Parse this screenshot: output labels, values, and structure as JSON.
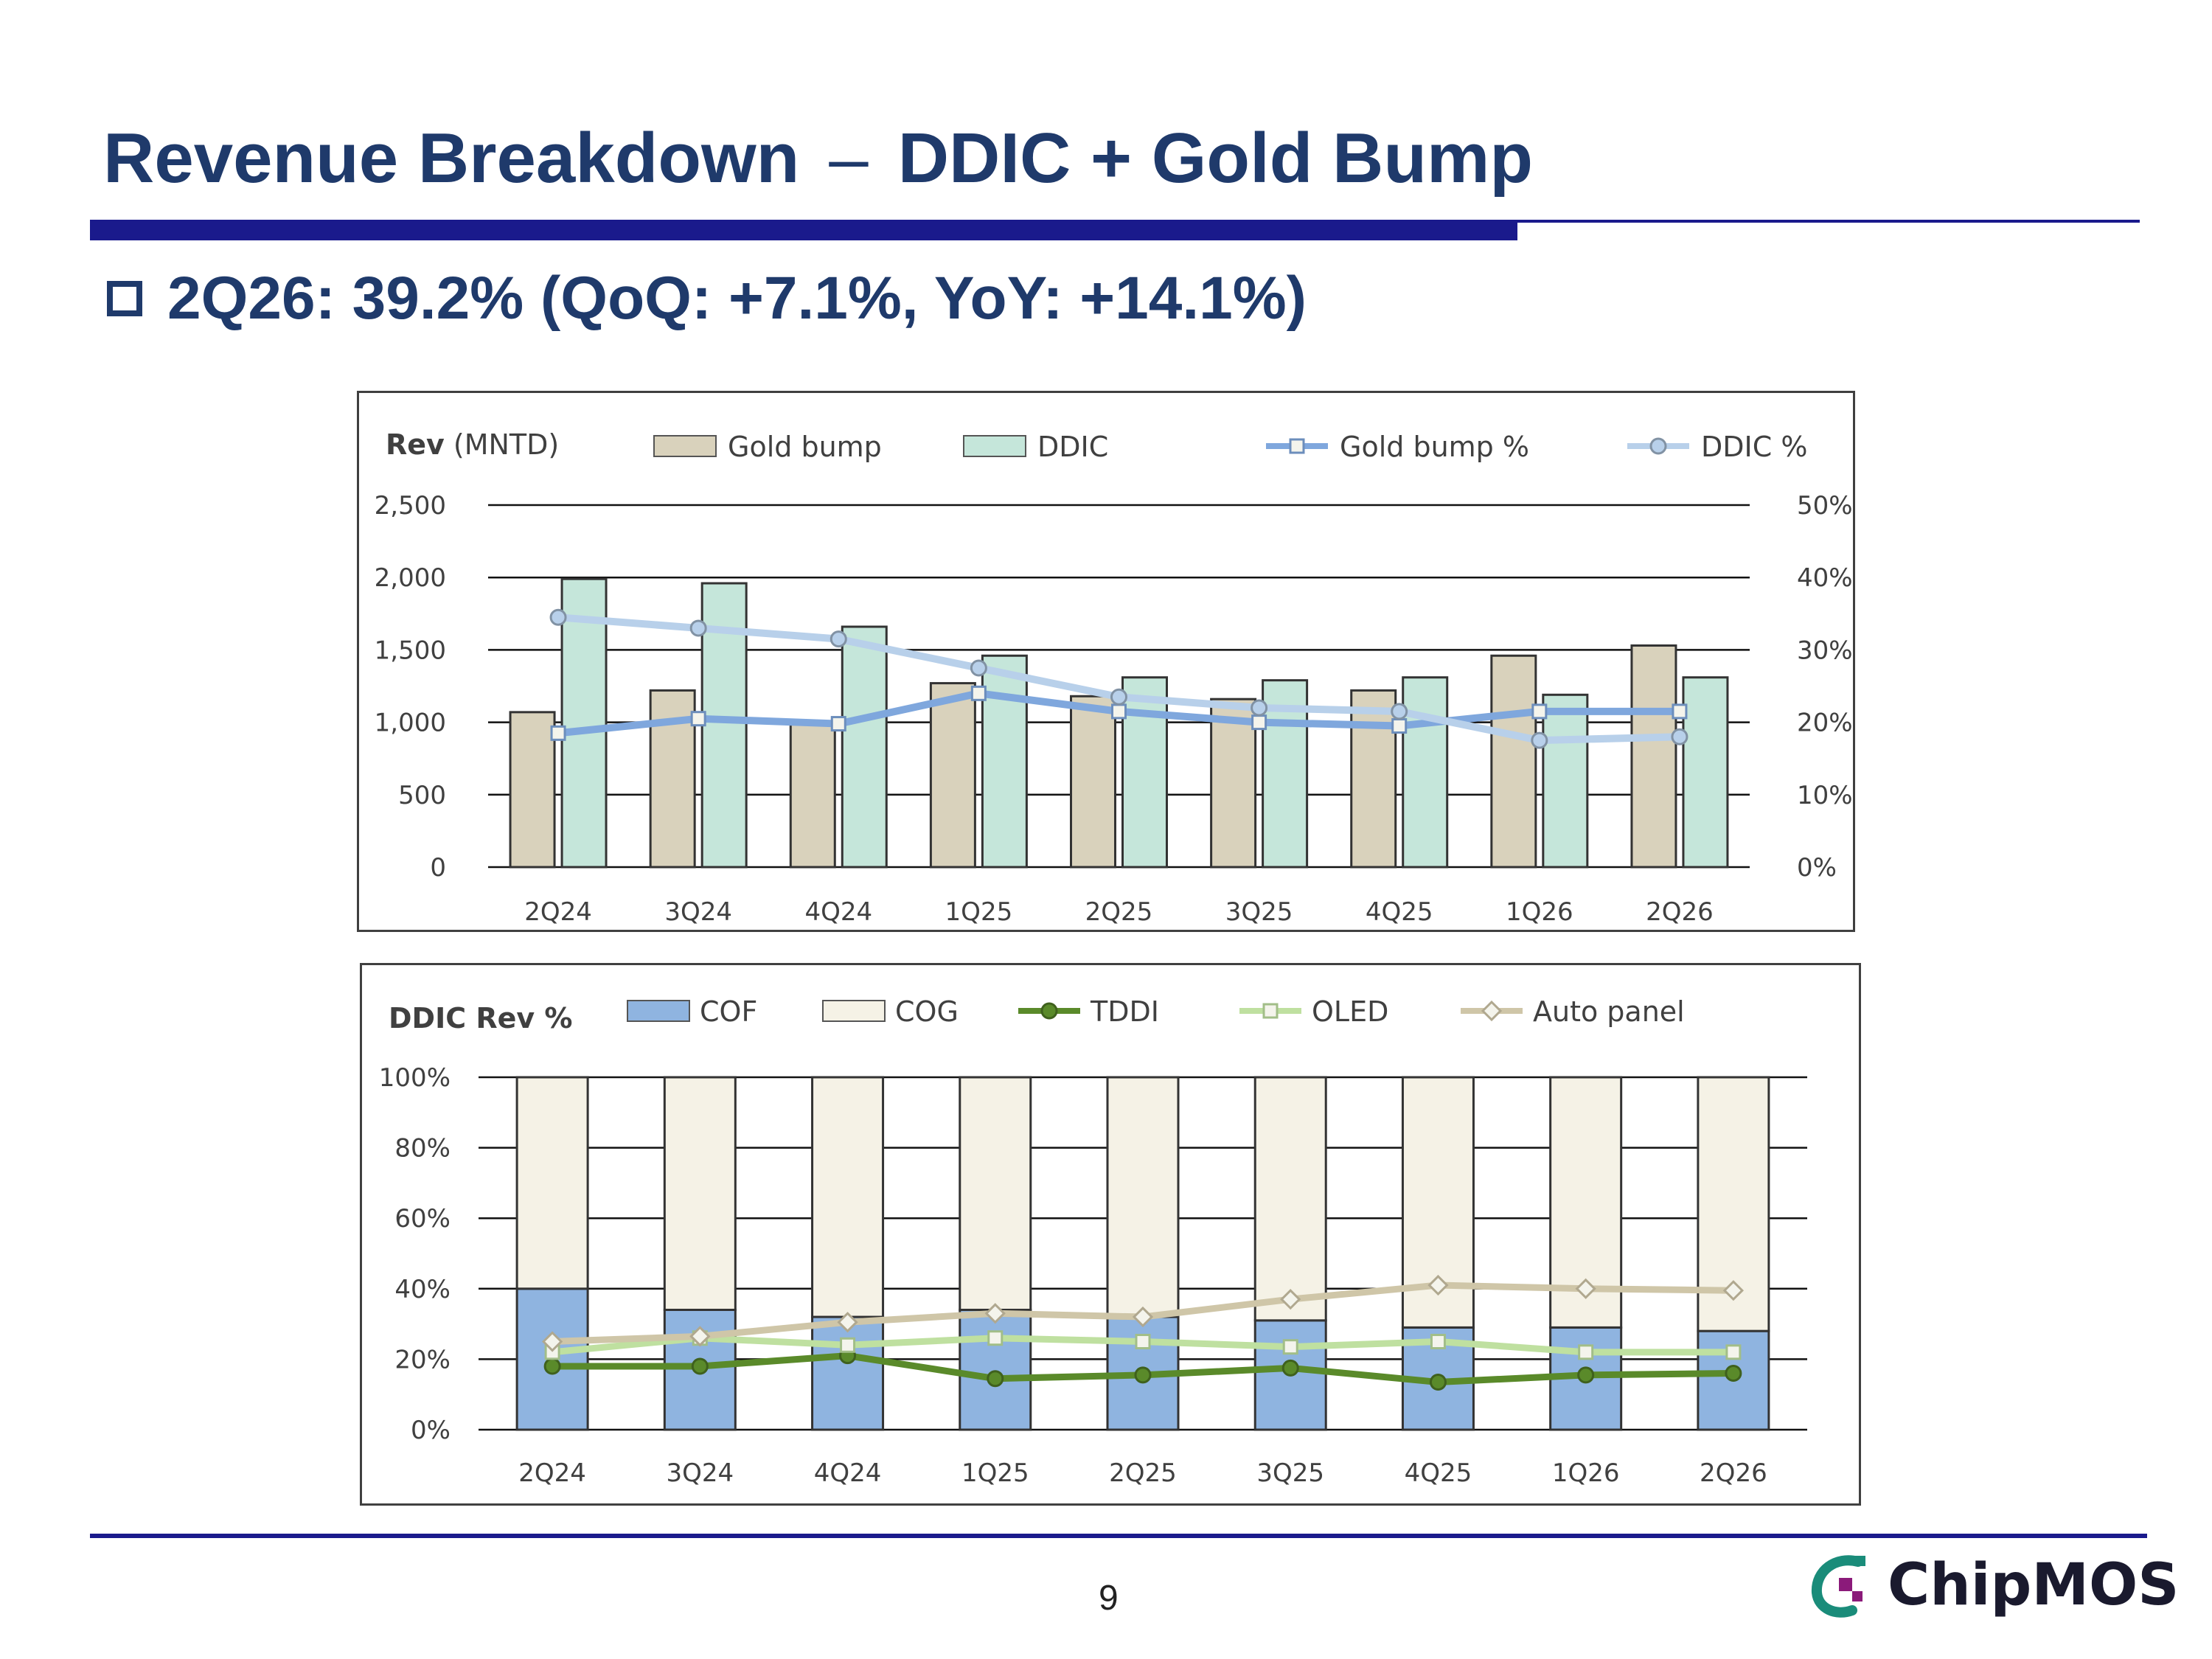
{
  "slide": {
    "title_left": "Revenue Breakdown",
    "title_dash": "–",
    "title_right": "DDIC + Gold Bump",
    "headline": "2Q26: 39.2% (QoQ: +7.1%, YoY: +14.1%)",
    "page_number": "9",
    "logo_text": "ChipMOS",
    "colors": {
      "title": "#1f3a6b",
      "rule": "#1a1a8c",
      "logo_teal": "#1a8c7a",
      "logo_purple": "#8b1a7a"
    }
  },
  "chart_data": [
    {
      "type": "bar",
      "title": "",
      "ylabel_bold": "Rev",
      "ylabel_unit": "(MNTD)",
      "categories": [
        "2Q24",
        "3Q24",
        "4Q24",
        "1Q25",
        "2Q25",
        "3Q25",
        "4Q25",
        "1Q26",
        "2Q26"
      ],
      "ylim": [
        0,
        2500
      ],
      "yticks": [
        0,
        500,
        1000,
        1500,
        2000,
        2500
      ],
      "ytick_labels": [
        "0",
        "500",
        "1,000",
        "1,500",
        "2,000",
        "2,500"
      ],
      "y2lim": [
        0,
        50
      ],
      "y2ticks": [
        0,
        10,
        20,
        30,
        40,
        50
      ],
      "y2tick_labels": [
        "0%",
        "10%",
        "20%",
        "30%",
        "40%",
        "50%"
      ],
      "grid": true,
      "legend_position": "top",
      "series": [
        {
          "name": "Gold bump",
          "kind": "bar",
          "axis": "left",
          "color": "#d9d2bc",
          "values": [
            1070,
            1220,
            990,
            1270,
            1180,
            1160,
            1220,
            1460,
            1530
          ]
        },
        {
          "name": "DDIC",
          "kind": "bar",
          "axis": "left",
          "color": "#c5e6da",
          "values": [
            1990,
            1960,
            1660,
            1460,
            1310,
            1290,
            1310,
            1190,
            1310
          ]
        },
        {
          "name": "Gold bump %",
          "kind": "line",
          "axis": "right",
          "color": "#7fa7dd",
          "marker": "square",
          "values": [
            18.5,
            20.5,
            19.8,
            24,
            21.5,
            20,
            19.5,
            21.5,
            21.5
          ]
        },
        {
          "name": "DDIC %",
          "kind": "line",
          "axis": "right",
          "color": "#b8d0ea",
          "marker": "circle",
          "values": [
            34.5,
            33,
            31.5,
            27.5,
            23.5,
            22,
            21.5,
            17.5,
            18
          ]
        }
      ]
    },
    {
      "type": "bar",
      "title": "DDIC Rev %",
      "categories": [
        "2Q24",
        "3Q24",
        "4Q24",
        "1Q25",
        "2Q25",
        "3Q25",
        "4Q25",
        "1Q26",
        "2Q26"
      ],
      "ylim": [
        0,
        100
      ],
      "yticks": [
        0,
        20,
        40,
        60,
        80,
        100
      ],
      "ytick_labels": [
        "0%",
        "20%",
        "40%",
        "60%",
        "80%",
        "100%"
      ],
      "grid": true,
      "legend_position": "top",
      "series": [
        {
          "name": "COF",
          "kind": "stacked-bar",
          "color": "#8fb4e0",
          "values": [
            40,
            34,
            32,
            34,
            32,
            31,
            29,
            29,
            28
          ]
        },
        {
          "name": "COG",
          "kind": "stacked-bar",
          "color": "#f5f2e6",
          "values": [
            60,
            66,
            68,
            66,
            68,
            69,
            71,
            71,
            72
          ]
        },
        {
          "name": "TDDI",
          "kind": "line",
          "color": "#5a8a2a",
          "marker": "circle",
          "values": [
            18,
            18,
            21,
            14.5,
            15.5,
            17.5,
            13.5,
            15.5,
            16
          ]
        },
        {
          "name": "OLED",
          "kind": "line",
          "color": "#bfe0a0",
          "marker": "square",
          "values": [
            22,
            26,
            24,
            26,
            25,
            23.5,
            25,
            22,
            22
          ]
        },
        {
          "name": "Auto panel",
          "kind": "line",
          "color": "#cfc6a8",
          "marker": "diamond",
          "values": [
            25,
            26.5,
            30.5,
            33,
            32,
            37,
            41,
            40,
            39.5
          ]
        }
      ]
    }
  ]
}
